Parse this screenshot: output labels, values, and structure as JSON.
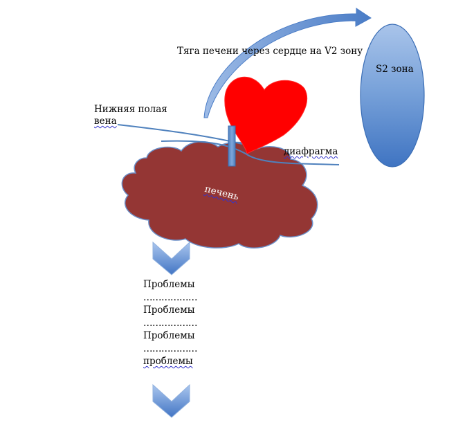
{
  "labels": {
    "traction": "Тяга печени через сердце на V2 зону",
    "s2_zone": "S2 зона",
    "ivc_line1": "Нижняя полая",
    "ivc_line2": "вена",
    "diaphragm": "диафрагма",
    "liver": "печень"
  },
  "problems": [
    {
      "text": "Проблемы",
      "dots": "………………"
    },
    {
      "text": "Проблемы",
      "dots": "………………"
    },
    {
      "text": "Проблемы",
      "dots": "………………"
    },
    {
      "text": "проблемы",
      "dots": ""
    }
  ],
  "colors": {
    "heart": "#ff0000",
    "liver": "#943634",
    "oval": "#4f81bd",
    "arrow": "#4f81bd",
    "lines": "#4f81bd"
  }
}
